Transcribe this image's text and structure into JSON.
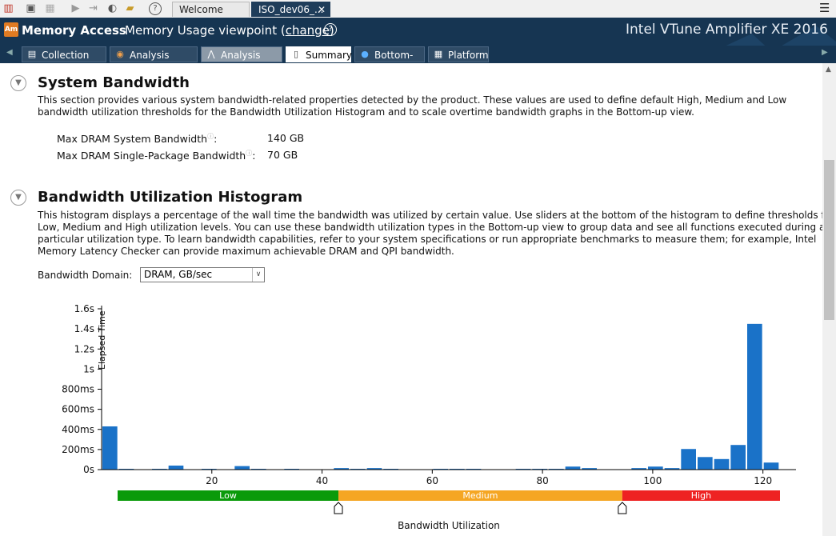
{
  "toolbar": {
    "icons": [
      "chart-icon",
      "new-analysis-icon",
      "compare-icon",
      "start-icon",
      "attach-icon",
      "gauge-icon",
      "open-folder-icon",
      "help-icon"
    ],
    "tabs": [
      {
        "label": "Welcome",
        "active": false
      },
      {
        "label": "ISO_dev06_...",
        "active": true
      }
    ],
    "close_glyph": "✕",
    "menu_glyph": "☰"
  },
  "header": {
    "app_badge": "Am",
    "title": "Memory Access",
    "viewpoint_prefix": "Memory Usage viewpoint (",
    "viewpoint_link": "change",
    "viewpoint_suffix": ")",
    "help_glyph": "?",
    "product": "Intel VTune Amplifier XE 2016"
  },
  "viewtabs": [
    {
      "label": "Collection Log",
      "icon": "log-icon",
      "glyph": "▤",
      "active": false
    },
    {
      "label": "Analysis Target",
      "icon": "target-icon",
      "glyph": "◉",
      "active": false
    },
    {
      "label": "Analysis Type",
      "icon": "compass-icon",
      "glyph": "⋀",
      "active": false
    },
    {
      "label": "Summary",
      "icon": "summary-icon",
      "glyph": "▯",
      "active": true
    },
    {
      "label": "Bottom-up",
      "icon": "bottomup-icon",
      "glyph": "●",
      "active": false
    },
    {
      "label": "Platform",
      "icon": "platform-icon",
      "glyph": "▦",
      "active": false
    }
  ],
  "system_bandwidth": {
    "heading": "System Bandwidth",
    "description_line1": "This section provides various system bandwidth-related properties detected by the product. These values are used to define default High, Medium and Low",
    "description_line2": "bandwidth utilization thresholds for the Bandwidth Utilization Histogram and to scale overtime bandwidth graphs in the Bottom-up view.",
    "rows": [
      {
        "label": "Max DRAM System Bandwidth",
        "value": "140 GB"
      },
      {
        "label": "Max DRAM Single-Package Bandwidth",
        "value": "70 GB"
      }
    ]
  },
  "histogram": {
    "heading": "Bandwidth Utilization Histogram",
    "description_line1": "This histogram displays a percentage of the wall time the bandwidth was utilized by certain value. Use sliders at the bottom of the histogram to define thresholds for",
    "description_line2": "Low, Medium and High utilization levels. You can use these bandwidth utilization types in the Bottom-up view to group data and see all functions executed during a",
    "description_line3": "particular utilization type. To learn bandwidth capabilities, refer to your system specifications or run appropriate benchmarks to measure them; for example, Intel",
    "description_line4": "Memory Latency Checker can provide maximum achievable DRAM and QPI bandwidth.",
    "domain_label": "Bandwidth Domain:",
    "domain_value": "DRAM, GB/sec",
    "levels": [
      {
        "label": "Low",
        "color": "#0a9a0a"
      },
      {
        "label": "Medium",
        "color": "#f5a623"
      },
      {
        "label": "High",
        "color": "#ee2222"
      }
    ]
  },
  "chart_data": {
    "type": "bar",
    "xlabel": "Bandwidth Utilization",
    "ylabel": "Elapsed Time",
    "xlim": [
      0,
      126
    ],
    "ylim": [
      0,
      1600
    ],
    "y_ticks": [
      0,
      200,
      400,
      600,
      800,
      1000,
      1200,
      1400,
      1600
    ],
    "y_tick_labels": [
      "0s",
      "200ms",
      "400ms",
      "600ms",
      "800ms",
      "1s",
      "1.2s",
      "1.4s",
      "1.6s"
    ],
    "x_ticks": [
      20,
      40,
      60,
      80,
      100,
      120
    ],
    "x_tick_labels": [
      "20",
      "40",
      "60",
      "80",
      "100",
      "120"
    ],
    "bar_color": "#1a72c8",
    "series": [
      {
        "x": [
          1.5,
          4.5,
          10.5,
          13.5,
          19.5,
          25.5,
          28.5,
          34.5,
          43.5,
          46.5,
          49.5,
          52.5,
          61.5,
          64.5,
          67.5,
          76.5,
          79.5,
          82.5,
          85.5,
          88.5,
          97.5,
          100.5,
          103.5,
          106.5,
          109.5,
          112.5,
          115.5,
          118.5,
          121.5
        ],
        "values": [
          430,
          8,
          8,
          40,
          8,
          35,
          8,
          8,
          15,
          8,
          15,
          8,
          8,
          8,
          8,
          8,
          8,
          8,
          30,
          15,
          15,
          30,
          15,
          205,
          125,
          105,
          245,
          1450,
          70
        ]
      }
    ],
    "thresholds": [
      42,
      96
    ]
  }
}
